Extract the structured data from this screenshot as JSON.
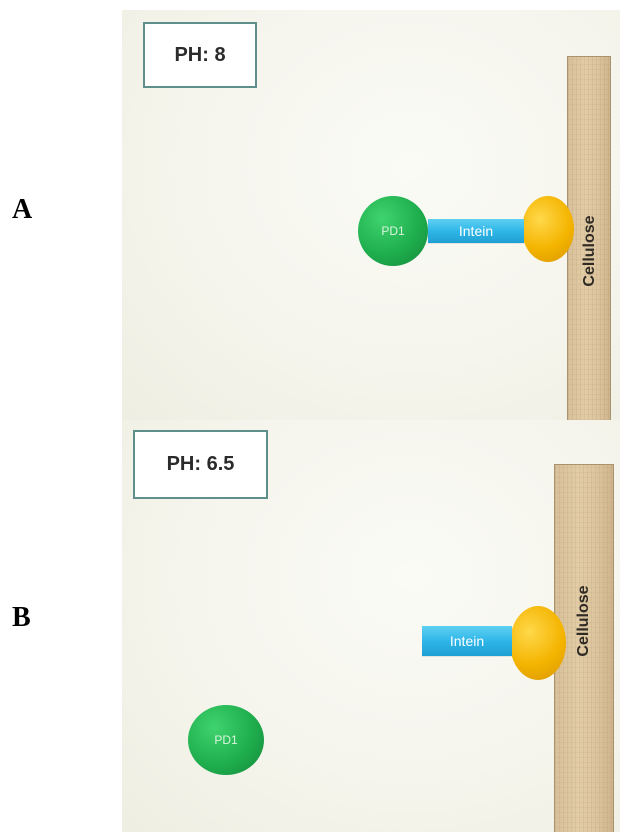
{
  "panels": [
    {
      "letter": "A",
      "ph_label": "PH: 8",
      "pd1_label": "PD1",
      "intein_label": "Intein",
      "cellulose_label": "Cellulose"
    },
    {
      "letter": "B",
      "ph_label": "PH: 6.5",
      "pd1_label": "PD1",
      "intein_label": "Intein",
      "cellulose_label": "Cellulose"
    }
  ],
  "colors": {
    "pd1": "#1fae4e",
    "intein": "#2fb6e8",
    "anchor": "#f4b400",
    "cellulose": "#dcc59f",
    "ph_box_border": "#5f8f8b"
  }
}
